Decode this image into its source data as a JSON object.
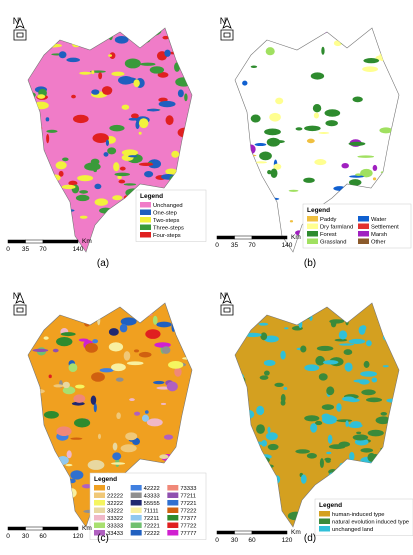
{
  "panels": [
    {
      "label": "(a)",
      "north": "N",
      "legend": {
        "title": "Legend",
        "columns": 1,
        "items": [
          {
            "name": "Unchanged",
            "color": "#f07cc8"
          },
          {
            "name": "One-step",
            "color": "#1f5fbf"
          },
          {
            "name": "Two-steps",
            "color": "#f2f23c"
          },
          {
            "name": "Three-steps",
            "color": "#3a9a3a"
          },
          {
            "name": "Four-steps",
            "color": "#e02020"
          }
        ]
      },
      "scale": {
        "ticks": [
          0,
          35,
          70,
          140
        ],
        "unit": "Km"
      }
    },
    {
      "label": "(b)",
      "north": "N",
      "legend": {
        "title": "Legend",
        "columns": 2,
        "items": [
          {
            "name": "Paddy",
            "color": "#f0c040"
          },
          {
            "name": "Dry farmland",
            "color": "#ffff90"
          },
          {
            "name": "Forest",
            "color": "#2e8b2e"
          },
          {
            "name": "Grassland",
            "color": "#a0e060"
          },
          {
            "name": "Water",
            "color": "#1060d0"
          },
          {
            "name": "Settlement",
            "color": "#e03030"
          },
          {
            "name": "Marsh",
            "color": "#a020c0"
          },
          {
            "name": "Other",
            "color": "#8b5a2b"
          }
        ]
      },
      "scale": {
        "ticks": [
          0,
          35,
          70,
          140
        ],
        "unit": "Km"
      }
    },
    {
      "label": "(c)",
      "north": "N",
      "legend": {
        "title": "Legend",
        "columns": 3,
        "items": [
          {
            "name": "0",
            "color": "#f0a020"
          },
          {
            "name": "22222",
            "color": "#f0c878"
          },
          {
            "name": "32222",
            "color": "#f5f560"
          },
          {
            "name": "33222",
            "color": "#e8d8a0"
          },
          {
            "name": "33322",
            "color": "#f0b8c8"
          },
          {
            "name": "33333",
            "color": "#a8e070"
          },
          {
            "name": "33433",
            "color": "#b060c0"
          },
          {
            "name": "42222",
            "color": "#4080e0"
          },
          {
            "name": "43333",
            "color": "#909090"
          },
          {
            "name": "55555",
            "color": "#202870"
          },
          {
            "name": "71111",
            "color": "#f8f0a0"
          },
          {
            "name": "72211",
            "color": "#90c8f0"
          },
          {
            "name": "72221",
            "color": "#70c070"
          },
          {
            "name": "72222",
            "color": "#2060c0"
          },
          {
            "name": "73333",
            "color": "#f08878"
          },
          {
            "name": "77211",
            "color": "#9050b0"
          },
          {
            "name": "77221",
            "color": "#3070d0"
          },
          {
            "name": "77222",
            "color": "#d06010"
          },
          {
            "name": "77377",
            "color": "#2e8b2e"
          },
          {
            "name": "77722",
            "color": "#e02020"
          },
          {
            "name": "77777",
            "color": "#d020d0"
          }
        ]
      },
      "scale": {
        "ticks": [
          0,
          30,
          60,
          120
        ],
        "unit": "Km"
      }
    },
    {
      "label": "(d)",
      "north": "N",
      "legend": {
        "title": "Legend",
        "columns": 1,
        "items": [
          {
            "name": "human-induced type",
            "color": "#d4a020"
          },
          {
            "name": "natural evolution induced type",
            "color": "#3a8a3a"
          },
          {
            "name": "unchanged land",
            "color": "#30c0d8"
          }
        ]
      },
      "scale": {
        "ticks": [
          0,
          30,
          60,
          120
        ],
        "unit": "Km"
      }
    }
  ]
}
